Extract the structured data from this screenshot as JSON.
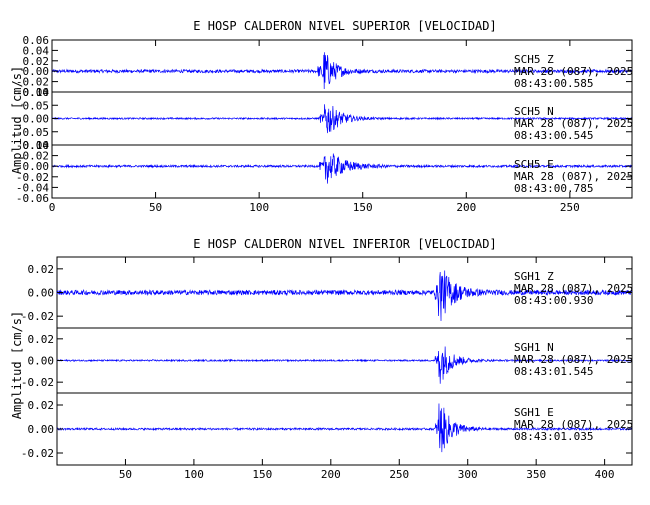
{
  "colors": {
    "trace": "#0000ff",
    "axis": "#000000",
    "background": "#ffffff"
  },
  "chart_data": [
    {
      "type": "line",
      "title": "E HOSP CALDERON NIVEL SUPERIOR [VELOCIDAD]",
      "ylabel": "Amplitud [cm/s]",
      "xlabel": "",
      "xlim": [
        0,
        280
      ],
      "x_ticks": [
        "0",
        "50",
        "100",
        "150",
        "200",
        "250"
      ],
      "x_tick_values": [
        0,
        50,
        100,
        150,
        200,
        250
      ],
      "grid": false,
      "panels": [
        {
          "station": "SCH5",
          "component": "Z",
          "date": "MAR 28 (087), 2025",
          "time": "08:43:00.585",
          "ylim": [
            -0.04,
            0.06
          ],
          "y_ticks": [
            "0.06",
            "0.04",
            "0.02",
            "0.00",
            "-0.02",
            "-0.04"
          ],
          "y_tick_values": [
            0.06,
            0.04,
            0.02,
            0.0,
            -0.02,
            -0.04
          ],
          "event_onset": 130,
          "noise_amplitude": 0.003,
          "peak_amplitude": 0.055,
          "decay": 5
        },
        {
          "station": "SCH5",
          "component": "N",
          "date": "MAR 28 (087), 2025",
          "time": "08:43:00.545",
          "ylim": [
            -0.1,
            0.1
          ],
          "y_ticks": [
            "0.10",
            "0.05",
            "0.00",
            "-0.05",
            "-0.10"
          ],
          "y_tick_values": [
            0.1,
            0.05,
            0.0,
            -0.05,
            -0.1
          ],
          "event_onset": 131,
          "noise_amplitude": 0.003,
          "peak_amplitude": 0.095,
          "decay": 6
        },
        {
          "station": "SCH5",
          "component": "E",
          "date": "MAR 28 (087), 2025",
          "time": "08:43:00.785",
          "ylim": [
            -0.06,
            0.04
          ],
          "y_ticks": [
            "0.04",
            "0.02",
            "0.00",
            "-0.02",
            "-0.04",
            "-0.06"
          ],
          "y_tick_values": [
            0.04,
            0.02,
            0.0,
            -0.02,
            -0.04,
            -0.06
          ],
          "event_onset": 131,
          "noise_amplitude": 0.002,
          "peak_amplitude": 0.04,
          "decay": 8
        }
      ]
    },
    {
      "type": "line",
      "title": "E HOSP CALDERON NIVEL INFERIOR [VELOCIDAD]",
      "ylabel": "Amplitud [cm/s]",
      "xlabel": "",
      "xlim": [
        0,
        420
      ],
      "x_ticks": [
        "50",
        "100",
        "150",
        "200",
        "250",
        "300",
        "350",
        "400"
      ],
      "x_tick_values": [
        50,
        100,
        150,
        200,
        250,
        300,
        350,
        400
      ],
      "grid": false,
      "panels": [
        {
          "station": "SGH1",
          "component": "Z",
          "date": "MAR 28 (087), 2025",
          "time": "08:43:00.930",
          "ylim": [
            -0.03,
            0.03
          ],
          "y_ticks": [
            "0.02",
            "0.00",
            "-0.02"
          ],
          "y_tick_values": [
            0.02,
            0.0,
            -0.02
          ],
          "event_onset": 278,
          "noise_amplitude": 0.002,
          "peak_amplitude": 0.03,
          "decay": 9
        },
        {
          "station": "SGH1",
          "component": "N",
          "date": "MAR 28 (087), 2025",
          "time": "08:43:01.545",
          "ylim": [
            -0.03,
            0.03
          ],
          "y_ticks": [
            "0.02",
            "0.00",
            "-0.02"
          ],
          "y_tick_values": [
            0.02,
            0.0,
            -0.02
          ],
          "event_onset": 278,
          "noise_amplitude": 0.0007,
          "peak_amplitude": 0.028,
          "decay": 8
        },
        {
          "station": "SGH1",
          "component": "E",
          "date": "MAR 28 (087), 2025",
          "time": "08:43:01.035",
          "ylim": [
            -0.03,
            0.03
          ],
          "y_ticks": [
            "0.02",
            "0.00",
            "-0.02"
          ],
          "y_tick_values": [
            0.02,
            0.0,
            -0.02
          ],
          "event_onset": 278,
          "noise_amplitude": 0.0008,
          "peak_amplitude": 0.03,
          "decay": 8
        }
      ]
    }
  ]
}
